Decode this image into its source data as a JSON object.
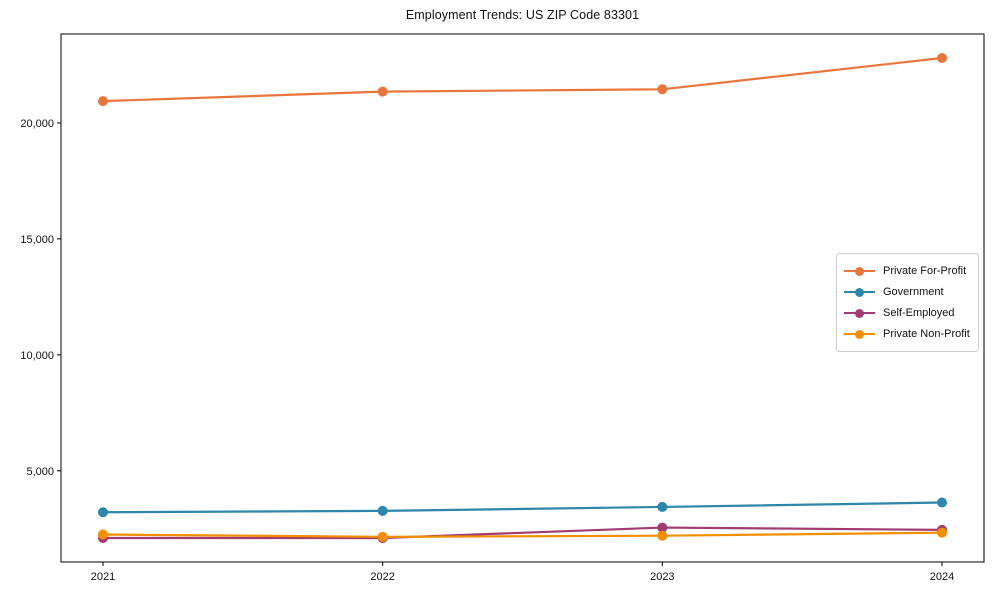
{
  "chart_data": {
    "type": "line",
    "title": "Employment Trends: US ZIP Code 83301",
    "xlabel": "",
    "ylabel": "",
    "x": [
      2021,
      2022,
      2023,
      2024
    ],
    "x_tick_labels": [
      "2021",
      "2022",
      "2023",
      "2024"
    ],
    "y_ticks": [
      5000,
      10000,
      15000,
      20000
    ],
    "y_tick_labels": [
      "5,000",
      "10,000",
      "15,000",
      "20,000"
    ],
    "ylim": [
      1065,
      23835
    ],
    "grid": false,
    "legend_position": "center-right",
    "series": [
      {
        "name": "Private For-Profit",
        "color": "#E8763C",
        "values": [
          20940,
          21350,
          21450,
          22800
        ]
      },
      {
        "name": "Government",
        "color": "#2E86AB",
        "values": [
          3210,
          3270,
          3440,
          3630
        ]
      },
      {
        "name": "Self-Employed",
        "color": "#A23B72",
        "values": [
          2100,
          2100,
          2550,
          2450
        ]
      },
      {
        "name": "Private Non-Profit",
        "color": "#F18F01",
        "values": [
          2250,
          2150,
          2200,
          2330
        ]
      }
    ],
    "marker": "circle",
    "marker_radius": 5,
    "line_width": 2.2
  }
}
